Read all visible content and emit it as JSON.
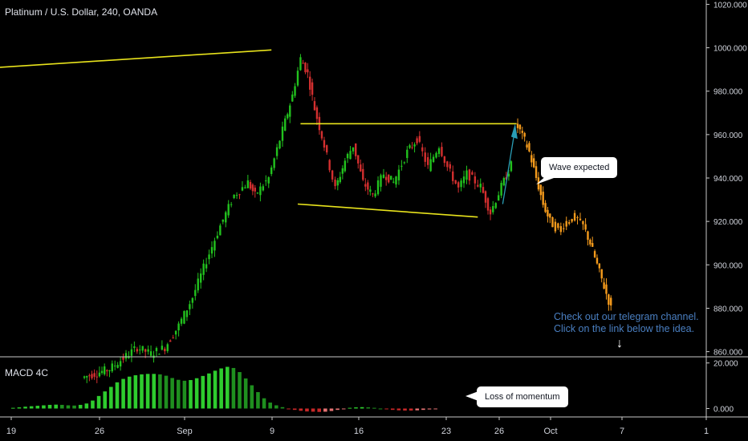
{
  "header": {
    "title": "Platinum / U.S. Dollar, 240, OANDA"
  },
  "macd": {
    "label": "MACD 4C"
  },
  "callouts": {
    "wave": "Wave expected",
    "momentum": "Loss of momentum"
  },
  "note": {
    "line1": "Check out our telegram channel.",
    "line2": "Click on the link below the idea."
  },
  "icons": {
    "note_arrow": "down-arrow-icon"
  },
  "colors": {
    "background": "#000000",
    "up_candle": "#22c21e",
    "down_candle": "#d32f2f",
    "projection": "#f59b1c",
    "trendline": "#e8e31c",
    "axis_text": "#d1d4dc"
  },
  "chart_data": [
    {
      "type": "candlestick",
      "title": "Platinum / U.S. Dollar, 240, OANDA",
      "x_ticks": [
        "19",
        "26",
        "Sep",
        "9",
        "16",
        "23",
        "26",
        "Oct",
        "7",
        "1"
      ],
      "y_ticks": [
        860,
        880,
        900,
        920,
        940,
        960,
        980,
        1000,
        1020
      ],
      "ylim": [
        858,
        1022
      ],
      "price_path": [
        {
          "x": 6,
          "y": 848
        },
        {
          "x": 8,
          "y": 852
        },
        {
          "x": 9,
          "y": 857
        },
        {
          "x": 10,
          "y": 862
        },
        {
          "x": 11,
          "y": 859
        },
        {
          "x": 12,
          "y": 862
        },
        {
          "x": 13,
          "y": 872
        },
        {
          "x": 14,
          "y": 885
        },
        {
          "x": 15,
          "y": 902
        },
        {
          "x": 16,
          "y": 918
        },
        {
          "x": 17,
          "y": 932
        },
        {
          "x": 18,
          "y": 938
        },
        {
          "x": 18.5,
          "y": 932
        },
        {
          "x": 19.5,
          "y": 940
        },
        {
          "x": 20.5,
          "y": 962
        },
        {
          "x": 21.2,
          "y": 978
        },
        {
          "x": 21.8,
          "y": 995
        },
        {
          "x": 22.3,
          "y": 988
        },
        {
          "x": 22.8,
          "y": 972
        },
        {
          "x": 23.5,
          "y": 955
        },
        {
          "x": 24.3,
          "y": 935
        },
        {
          "x": 25,
          "y": 948
        },
        {
          "x": 25.6,
          "y": 955
        },
        {
          "x": 26.3,
          "y": 938
        },
        {
          "x": 27,
          "y": 932
        },
        {
          "x": 27.8,
          "y": 942
        },
        {
          "x": 28.5,
          "y": 938
        },
        {
          "x": 29.5,
          "y": 952
        },
        {
          "x": 30.2,
          "y": 958
        },
        {
          "x": 31,
          "y": 945
        },
        {
          "x": 31.8,
          "y": 955
        },
        {
          "x": 32.4,
          "y": 945
        },
        {
          "x": 33.2,
          "y": 935
        },
        {
          "x": 33.8,
          "y": 942
        },
        {
          "x": 34.8,
          "y": 936
        },
        {
          "x": 35.5,
          "y": 924
        },
        {
          "x": 36.3,
          "y": 936
        },
        {
          "x": 37,
          "y": 946
        }
      ],
      "projection_path": [
        {
          "x": 37.3,
          "y": 965
        },
        {
          "x": 37.8,
          "y": 960
        },
        {
          "x": 38.3,
          "y": 952
        },
        {
          "x": 38.8,
          "y": 940
        },
        {
          "x": 39.3,
          "y": 928
        },
        {
          "x": 39.8,
          "y": 920
        },
        {
          "x": 40.4,
          "y": 916
        },
        {
          "x": 41,
          "y": 920
        },
        {
          "x": 41.6,
          "y": 922
        },
        {
          "x": 42.2,
          "y": 918
        },
        {
          "x": 42.7,
          "y": 910
        },
        {
          "x": 43.2,
          "y": 900
        },
        {
          "x": 43.7,
          "y": 890
        },
        {
          "x": 44.2,
          "y": 880
        }
      ],
      "trendlines": [
        {
          "from": {
            "x": 0,
            "y": 991
          },
          "to": {
            "x": 19.6,
            "y": 999
          }
        },
        {
          "from": {
            "x": 21.7,
            "y": 965
          },
          "to": {
            "x": 37.3,
            "y": 965
          }
        },
        {
          "from": {
            "x": 21.5,
            "y": 928
          },
          "to": {
            "x": 34.5,
            "y": 922
          }
        }
      ]
    },
    {
      "type": "bar",
      "title": "MACD 4C",
      "y_ticks": [
        0,
        20
      ],
      "y_tick_labels": [
        "0.000",
        "20.000"
      ],
      "ylim": [
        -3,
        22
      ],
      "histogram": [
        0.3,
        0.5,
        0.8,
        1,
        1.2,
        1.4,
        1.6,
        1.7,
        1.6,
        1.4,
        1.3,
        1.6,
        2.2,
        3.5,
        5.5,
        7.5,
        9.5,
        11.5,
        13,
        14,
        14.6,
        15,
        15.2,
        15.2,
        15,
        14.4,
        13.4,
        12.6,
        12.2,
        12.5,
        13.3,
        14.3,
        15.4,
        16.6,
        17.6,
        18.3,
        17.8,
        16,
        13.2,
        10.2,
        7.2,
        4.5,
        2.6,
        1.4,
        0.6,
        -0.1,
        -0.6,
        -1,
        -1.3,
        -1.4,
        -1.5,
        -1.4,
        -1.1,
        -0.6,
        -0.1,
        0.3,
        0.5,
        0.6,
        0.5,
        0.3,
        0,
        -0.3,
        -0.6,
        -0.8,
        -0.9,
        -0.9,
        -0.8,
        -0.6,
        -0.4,
        -0.2
      ]
    }
  ]
}
